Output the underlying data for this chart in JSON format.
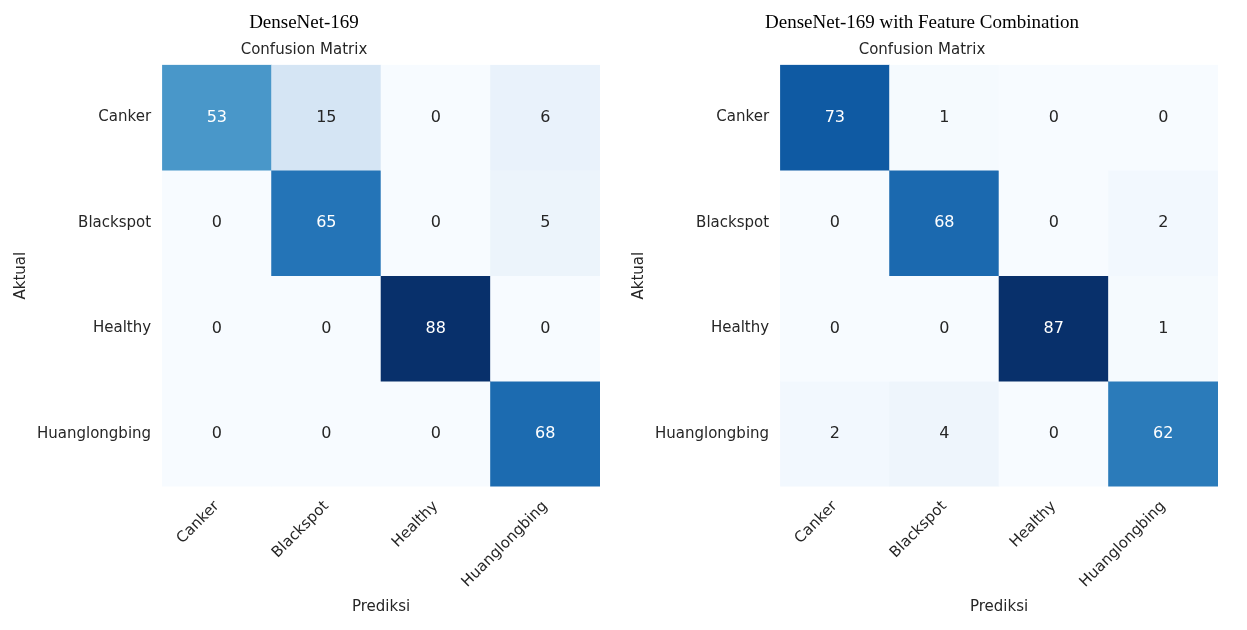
{
  "chart_data": [
    {
      "type": "heatmap",
      "title": "DenseNet-169",
      "subtitle": "Confusion Matrix",
      "xlabel": "Prediksi",
      "ylabel": "Aktual",
      "categories": [
        "Canker",
        "Blackspot",
        "Healthy",
        "Huanglongbing"
      ],
      "y_categories": [
        "Canker",
        "Blackspot",
        "Healthy",
        "Huanglongbing"
      ],
      "cells": [
        [
          53,
          15,
          0,
          6
        ],
        [
          0,
          65,
          0,
          5
        ],
        [
          0,
          0,
          88,
          0
        ],
        [
          0,
          0,
          0,
          68
        ]
      ],
      "data_labels": true,
      "grid": false,
      "legend": false
    },
    {
      "type": "heatmap",
      "title": "DenseNet-169 with Feature Combination",
      "subtitle": "Confusion Matrix",
      "xlabel": "Prediksi",
      "ylabel": "Aktual",
      "categories": [
        "Canker",
        "Blackspot",
        "Healthy",
        "Huanglongbing"
      ],
      "y_categories": [
        "Canker",
        "Blackspot",
        "Healthy",
        "Huanglongbing"
      ],
      "cells": [
        [
          73,
          1,
          0,
          0
        ],
        [
          0,
          68,
          0,
          2
        ],
        [
          0,
          0,
          87,
          1
        ],
        [
          2,
          4,
          0,
          62
        ]
      ],
      "data_labels": true,
      "grid": false,
      "legend": false
    }
  ]
}
